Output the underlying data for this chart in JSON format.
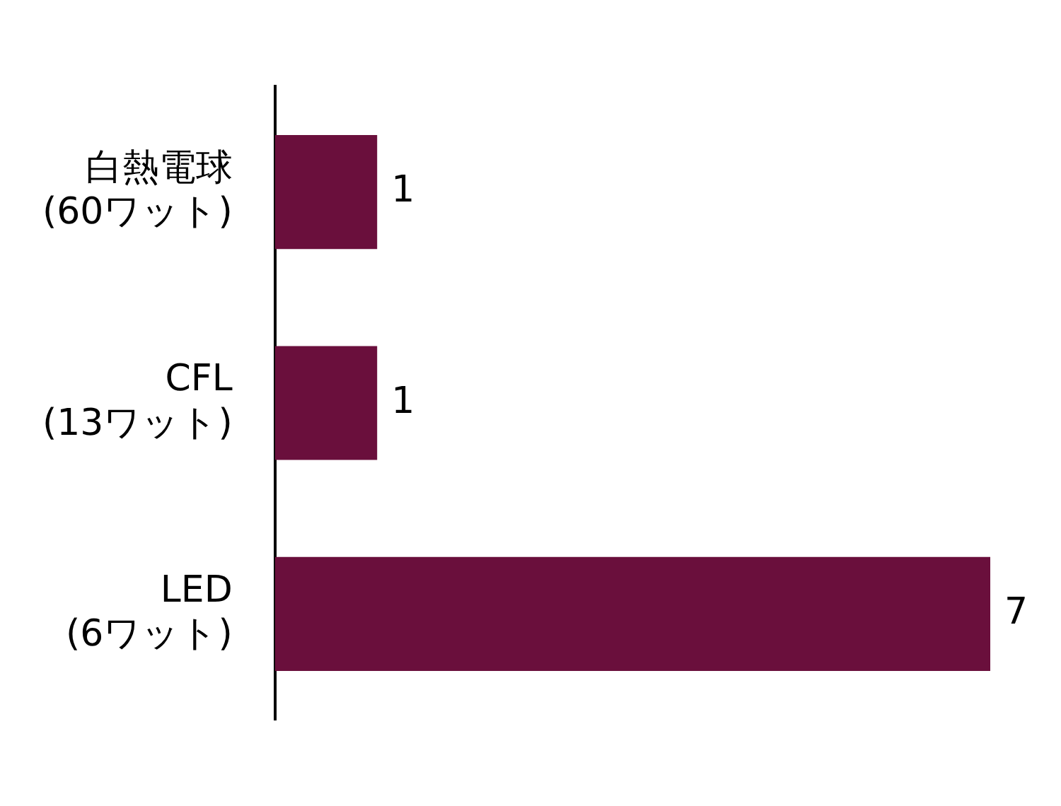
{
  "chart_data": {
    "type": "bar",
    "orientation": "horizontal",
    "categories": [
      "白熱電球\n(60ワット)",
      "CFL\n(13ワット)",
      "LED\n(6ワット)"
    ],
    "values": [
      1,
      1,
      7
    ],
    "color": "#6a0f3c",
    "data_labels": true,
    "legend": false,
    "tick_labels": "y"
  }
}
